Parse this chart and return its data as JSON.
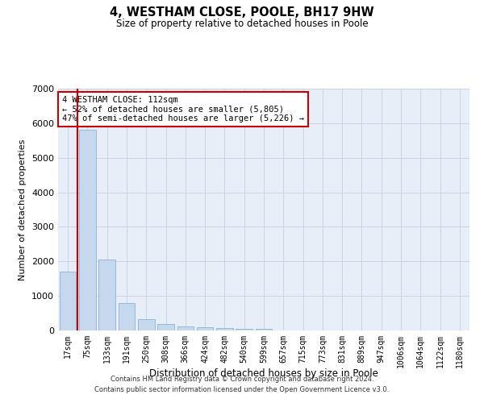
{
  "title": "4, WESTHAM CLOSE, POOLE, BH17 9HW",
  "subtitle": "Size of property relative to detached houses in Poole",
  "xlabel": "Distribution of detached houses by size in Poole",
  "ylabel": "Number of detached properties",
  "categories": [
    "17sqm",
    "75sqm",
    "133sqm",
    "191sqm",
    "250sqm",
    "308sqm",
    "366sqm",
    "424sqm",
    "482sqm",
    "540sqm",
    "599sqm",
    "657sqm",
    "715sqm",
    "773sqm",
    "831sqm",
    "889sqm",
    "947sqm",
    "1006sqm",
    "1064sqm",
    "1122sqm",
    "1180sqm"
  ],
  "values": [
    1700,
    5800,
    2050,
    800,
    320,
    180,
    110,
    90,
    70,
    50,
    40,
    0,
    0,
    0,
    0,
    0,
    0,
    0,
    0,
    0,
    0
  ],
  "bar_color": "#c5d8ed",
  "bar_edge_color": "#8ab4d4",
  "red_line_x": 0.5,
  "property_name": "4 WESTHAM CLOSE: 112sqm",
  "annotation_line1": "← 52% of detached houses are smaller (5,805)",
  "annotation_line2": "47% of semi-detached houses are larger (5,226) →",
  "ylim": [
    0,
    7000
  ],
  "yticks": [
    0,
    1000,
    2000,
    3000,
    4000,
    5000,
    6000,
    7000
  ],
  "annotation_box_facecolor": "#ffffff",
  "annotation_box_edgecolor": "#cc0000",
  "grid_color": "#c8d4e8",
  "bg_color": "#e8eef8",
  "footer_line1": "Contains HM Land Registry data © Crown copyright and database right 2024.",
  "footer_line2": "Contains public sector information licensed under the Open Government Licence v3.0."
}
